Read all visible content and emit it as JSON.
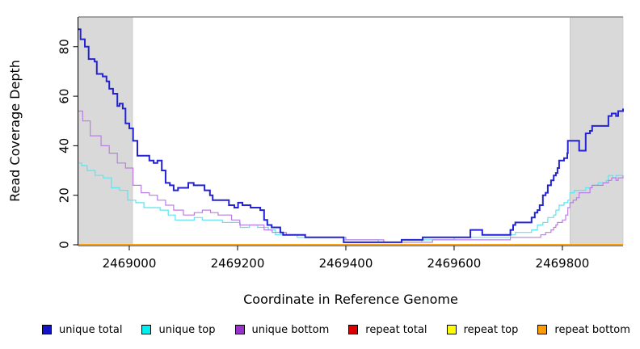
{
  "chart_data": {
    "type": "line",
    "subtype": "step",
    "title": "",
    "xlabel": "Coordinate in Reference Genome",
    "ylabel": "Read Coverage Depth",
    "xlim": [
      2468906,
      2469912
    ],
    "ylim": [
      0,
      92
    ],
    "xticks": [
      2469000,
      2469200,
      2469400,
      2469600,
      2469800
    ],
    "yticks": [
      0,
      20,
      40,
      60,
      80
    ],
    "grid": false,
    "legend_position": "bottom",
    "plot_bg_color": "#ffffff",
    "shaded_region_color": "#d9d9d9",
    "top_border_color": "#8a8a8a",
    "shaded_regions": [
      {
        "x0": 2468906,
        "x1": 2469006
      },
      {
        "x0": 2469814,
        "x1": 2469912
      }
    ],
    "draw_order": [
      "repeat total",
      "repeat top",
      "unique top",
      "unique bottom",
      "unique total",
      "repeat bottom"
    ],
    "series": [
      {
        "name": "unique total",
        "color": "#2323d4",
        "legend_color": "#1414cc",
        "line_width": 2,
        "points": [
          [
            2468906,
            87
          ],
          [
            2468910,
            83
          ],
          [
            2468918,
            80
          ],
          [
            2468925,
            75
          ],
          [
            2468936,
            74
          ],
          [
            2468940,
            69
          ],
          [
            2468951,
            68
          ],
          [
            2468958,
            66
          ],
          [
            2468963,
            63
          ],
          [
            2468970,
            61
          ],
          [
            2468978,
            56
          ],
          [
            2468982,
            57
          ],
          [
            2468988,
            55
          ],
          [
            2468993,
            49
          ],
          [
            2469000,
            47
          ],
          [
            2469007,
            42
          ],
          [
            2469015,
            36
          ],
          [
            2469037,
            34
          ],
          [
            2469045,
            33
          ],
          [
            2469052,
            34
          ],
          [
            2469060,
            30
          ],
          [
            2469067,
            25
          ],
          [
            2469075,
            24
          ],
          [
            2469082,
            22
          ],
          [
            2469090,
            23
          ],
          [
            2469109,
            25
          ],
          [
            2469119,
            24
          ],
          [
            2469139,
            22
          ],
          [
            2469149,
            20
          ],
          [
            2469154,
            18
          ],
          [
            2469184,
            16
          ],
          [
            2469194,
            15
          ],
          [
            2469201,
            17
          ],
          [
            2469209,
            16
          ],
          [
            2469224,
            15
          ],
          [
            2469242,
            14
          ],
          [
            2469249,
            10
          ],
          [
            2469255,
            8
          ],
          [
            2469263,
            7
          ],
          [
            2469279,
            5
          ],
          [
            2469284,
            4
          ],
          [
            2469325,
            3
          ],
          [
            2469396,
            1
          ],
          [
            2469503,
            2
          ],
          [
            2469542,
            3
          ],
          [
            2469630,
            6
          ],
          [
            2469652,
            4
          ],
          [
            2469704,
            6
          ],
          [
            2469709,
            8
          ],
          [
            2469713,
            9
          ],
          [
            2469743,
            11
          ],
          [
            2469749,
            13
          ],
          [
            2469754,
            14
          ],
          [
            2469758,
            16
          ],
          [
            2469764,
            20
          ],
          [
            2469769,
            21
          ],
          [
            2469773,
            24
          ],
          [
            2469779,
            26
          ],
          [
            2469784,
            28
          ],
          [
            2469788,
            29
          ],
          [
            2469791,
            31
          ],
          [
            2469794,
            34
          ],
          [
            2469803,
            35
          ],
          [
            2469809,
            37
          ],
          [
            2469810,
            42
          ],
          [
            2469831,
            38
          ],
          [
            2469843,
            45
          ],
          [
            2469851,
            46
          ],
          [
            2469855,
            48
          ],
          [
            2469885,
            52
          ],
          [
            2469891,
            53
          ],
          [
            2469899,
            52
          ],
          [
            2469903,
            54
          ],
          [
            2469912,
            55
          ]
        ]
      },
      {
        "name": "unique top",
        "color": "#5ce4f0",
        "legend_color": "#00f0f0",
        "line_width": 1.2,
        "points": [
          [
            2468906,
            33
          ],
          [
            2468912,
            32
          ],
          [
            2468922,
            30
          ],
          [
            2468937,
            28
          ],
          [
            2468952,
            27
          ],
          [
            2468967,
            23
          ],
          [
            2468982,
            22
          ],
          [
            2468997,
            18
          ],
          [
            2469012,
            17
          ],
          [
            2469027,
            15
          ],
          [
            2469057,
            14
          ],
          [
            2469072,
            12
          ],
          [
            2469085,
            10
          ],
          [
            2469120,
            11
          ],
          [
            2469135,
            10
          ],
          [
            2469172,
            9
          ],
          [
            2469205,
            7
          ],
          [
            2469222,
            8
          ],
          [
            2469237,
            7
          ],
          [
            2469257,
            6
          ],
          [
            2469270,
            4
          ],
          [
            2469310,
            3
          ],
          [
            2469396,
            2
          ],
          [
            2469460,
            1
          ],
          [
            2469540,
            2
          ],
          [
            2469600,
            3
          ],
          [
            2469704,
            4
          ],
          [
            2469713,
            5
          ],
          [
            2469743,
            6
          ],
          [
            2469754,
            8
          ],
          [
            2469764,
            9
          ],
          [
            2469773,
            11
          ],
          [
            2469784,
            12
          ],
          [
            2469788,
            14
          ],
          [
            2469794,
            16
          ],
          [
            2469803,
            17
          ],
          [
            2469810,
            18
          ],
          [
            2469814,
            21
          ],
          [
            2469822,
            22
          ],
          [
            2469843,
            23
          ],
          [
            2469855,
            24
          ],
          [
            2469866,
            25
          ],
          [
            2469881,
            26
          ],
          [
            2469885,
            28
          ],
          [
            2469893,
            27
          ],
          [
            2469899,
            28
          ],
          [
            2469912,
            28
          ]
        ]
      },
      {
        "name": "unique bottom",
        "color": "#bb7de2",
        "legend_color": "#9a32cd",
        "line_width": 1.2,
        "points": [
          [
            2468906,
            54
          ],
          [
            2468914,
            50
          ],
          [
            2468928,
            44
          ],
          [
            2468948,
            40
          ],
          [
            2468963,
            37
          ],
          [
            2468978,
            33
          ],
          [
            2468993,
            31
          ],
          [
            2469007,
            24
          ],
          [
            2469022,
            21
          ],
          [
            2469037,
            20
          ],
          [
            2469052,
            18
          ],
          [
            2469067,
            16
          ],
          [
            2469082,
            14
          ],
          [
            2469100,
            12
          ],
          [
            2469120,
            13
          ],
          [
            2469135,
            14
          ],
          [
            2469150,
            13
          ],
          [
            2469164,
            12
          ],
          [
            2469189,
            10
          ],
          [
            2469204,
            8
          ],
          [
            2469249,
            6
          ],
          [
            2469264,
            5
          ],
          [
            2469290,
            4
          ],
          [
            2469325,
            3
          ],
          [
            2469400,
            2
          ],
          [
            2469470,
            1
          ],
          [
            2469560,
            2
          ],
          [
            2469704,
            3
          ],
          [
            2469760,
            4
          ],
          [
            2469769,
            5
          ],
          [
            2469779,
            6
          ],
          [
            2469784,
            7
          ],
          [
            2469788,
            8
          ],
          [
            2469791,
            9
          ],
          [
            2469800,
            10
          ],
          [
            2469806,
            12
          ],
          [
            2469810,
            15
          ],
          [
            2469814,
            17
          ],
          [
            2469820,
            18
          ],
          [
            2469826,
            19
          ],
          [
            2469831,
            21
          ],
          [
            2469851,
            23
          ],
          [
            2469855,
            24
          ],
          [
            2469875,
            25
          ],
          [
            2469885,
            26
          ],
          [
            2469891,
            27
          ],
          [
            2469899,
            26
          ],
          [
            2469903,
            27
          ],
          [
            2469912,
            28
          ]
        ]
      },
      {
        "name": "repeat total",
        "color": "#dd0000",
        "legend_color": "#dd0000",
        "line_width": 1.2,
        "points": [
          [
            2468906,
            0
          ],
          [
            2469912,
            0
          ]
        ]
      },
      {
        "name": "repeat top",
        "color": "#ffff00",
        "legend_color": "#ffff00",
        "line_width": 1.2,
        "points": [
          [
            2468906,
            0
          ],
          [
            2469912,
            0
          ]
        ]
      },
      {
        "name": "repeat bottom",
        "color": "#ff9d00",
        "legend_color": "#ff9d00",
        "line_width": 1.8,
        "points": [
          [
            2468906,
            0
          ],
          [
            2469912,
            0
          ]
        ]
      }
    ]
  }
}
